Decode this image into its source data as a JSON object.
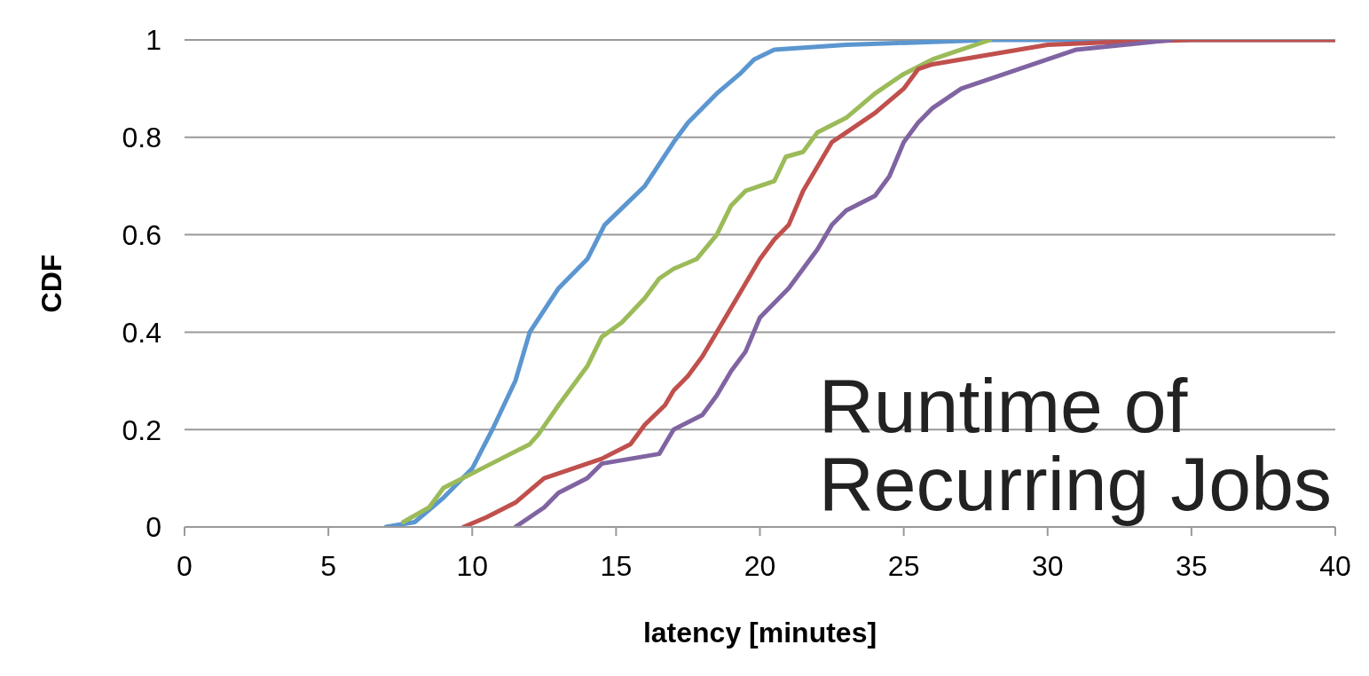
{
  "chart_data": {
    "type": "line",
    "xlabel": "latency [minutes]",
    "ylabel": "CDF",
    "xlim": [
      0,
      40
    ],
    "xticks": [
      0,
      5,
      10,
      15,
      20,
      25,
      30,
      35,
      40
    ],
    "ylim": [
      0,
      1
    ],
    "yticks": [
      0,
      0.2,
      0.4,
      0.6,
      0.8,
      1
    ],
    "grid": "y",
    "legend": false,
    "marker": "none",
    "line_style": "solid",
    "annotations": [
      "Runtime of\nRecurring Jobs"
    ],
    "series": [
      {
        "color": "#5b96d0",
        "x": [
          7.0,
          8,
          9,
          10,
          10.7,
          11.5,
          12,
          13,
          14,
          14.6,
          15.3,
          16,
          17,
          17.5,
          18.5,
          19.3,
          19.8,
          20.5,
          23,
          28,
          40
        ],
        "values": [
          0,
          0.01,
          0.06,
          0.12,
          0.2,
          0.3,
          0.4,
          0.49,
          0.55,
          0.62,
          0.66,
          0.7,
          0.79,
          0.83,
          0.89,
          0.93,
          0.96,
          0.98,
          0.99,
          1,
          1
        ]
      },
      {
        "color": "#9bbb59",
        "x": [
          7.6,
          8.5,
          9,
          10,
          11,
          12,
          12.3,
          13,
          14,
          14.5,
          15.2,
          16,
          16.5,
          17,
          17.8,
          18.5,
          19,
          19.5,
          20.5,
          20.9,
          21.5,
          22,
          23,
          24,
          25,
          26,
          27,
          28
        ],
        "values": [
          0.01,
          0.04,
          0.08,
          0.11,
          0.14,
          0.17,
          0.19,
          0.25,
          0.33,
          0.39,
          0.42,
          0.47,
          0.51,
          0.53,
          0.55,
          0.6,
          0.66,
          0.69,
          0.71,
          0.76,
          0.77,
          0.81,
          0.84,
          0.89,
          0.93,
          0.96,
          0.98,
          1
        ]
      },
      {
        "color": "#c0504d",
        "x": [
          9.7,
          10.5,
          11.5,
          12.5,
          13.5,
          14.5,
          15.5,
          16,
          16.7,
          17,
          17.5,
          18,
          18.5,
          19,
          19.5,
          20,
          20.5,
          21,
          21.5,
          22,
          22.5,
          23,
          24,
          25,
          25.5,
          26,
          27,
          28,
          30,
          32,
          35,
          40
        ],
        "values": [
          0,
          0.02,
          0.05,
          0.1,
          0.12,
          0.14,
          0.17,
          0.21,
          0.25,
          0.28,
          0.31,
          0.35,
          0.4,
          0.45,
          0.5,
          0.55,
          0.59,
          0.62,
          0.69,
          0.74,
          0.79,
          0.81,
          0.85,
          0.9,
          0.94,
          0.95,
          0.96,
          0.97,
          0.99,
          0.995,
          1,
          1
        ]
      },
      {
        "color": "#8064a2",
        "x": [
          11.5,
          12.5,
          13,
          14,
          14.5,
          15.5,
          16.5,
          17,
          18,
          18.5,
          19,
          19.5,
          20,
          20.5,
          21,
          21.5,
          22,
          22.5,
          23,
          24,
          24.5,
          25,
          25.5,
          26,
          27,
          28,
          29,
          30,
          31,
          34.3
        ],
        "values": [
          0,
          0.04,
          0.07,
          0.1,
          0.13,
          0.14,
          0.15,
          0.2,
          0.23,
          0.27,
          0.32,
          0.36,
          0.43,
          0.46,
          0.49,
          0.53,
          0.57,
          0.62,
          0.65,
          0.68,
          0.72,
          0.79,
          0.83,
          0.86,
          0.9,
          0.92,
          0.94,
          0.96,
          0.98,
          1
        ]
      }
    ]
  }
}
